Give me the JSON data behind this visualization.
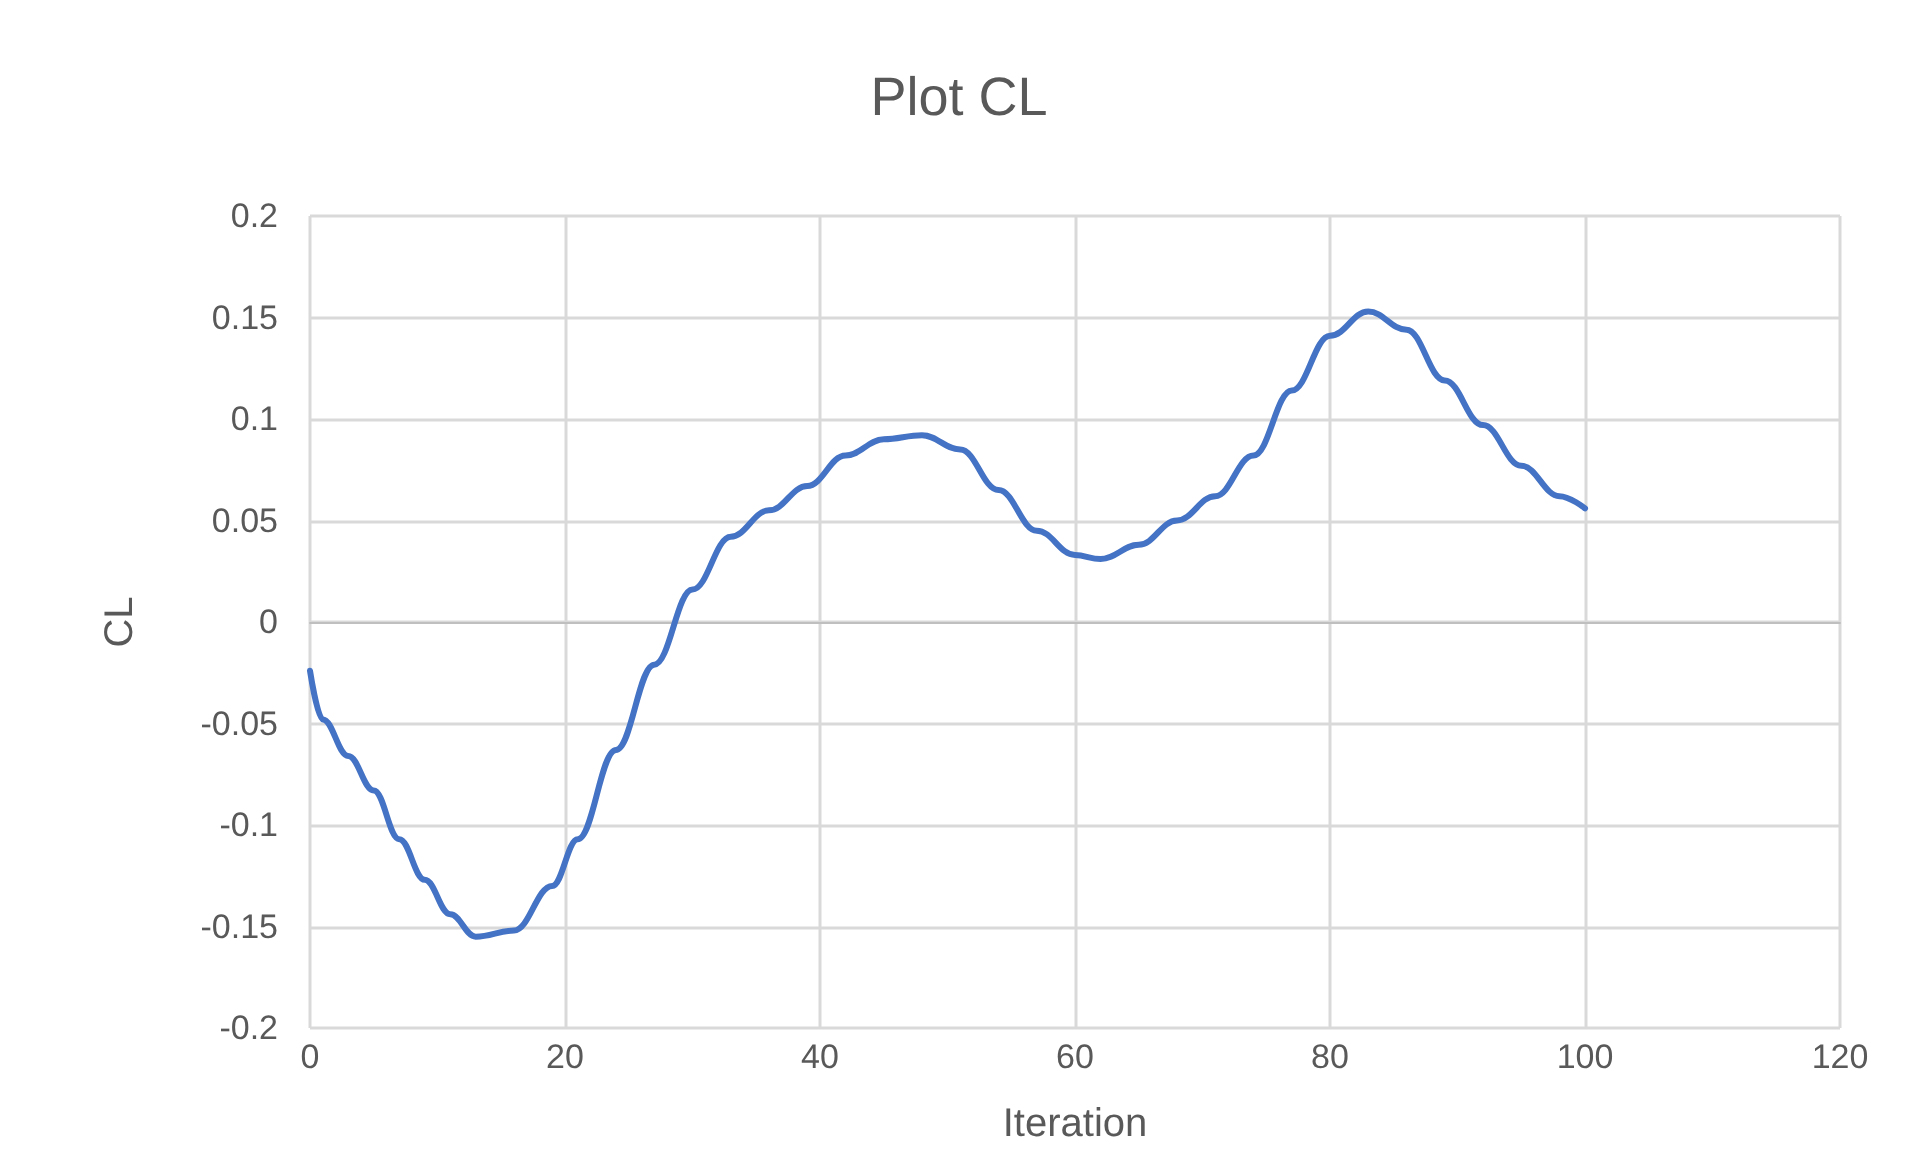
{
  "chart_data": {
    "type": "line",
    "title": "Plot CL",
    "xlabel": "Iteration",
    "ylabel": "CL",
    "x": [
      0,
      1,
      3,
      5,
      7,
      9,
      11,
      13,
      16,
      19,
      21,
      24,
      27,
      30,
      33,
      36,
      39,
      42,
      45,
      48,
      51,
      54,
      57,
      60,
      62,
      65,
      68,
      71,
      74,
      77,
      80,
      83,
      86,
      89,
      92,
      95,
      98,
      100
    ],
    "series": [
      {
        "color": "#4472c4",
        "values": [
          -0.024,
          -0.048,
          -0.066,
          -0.083,
          -0.107,
          -0.127,
          -0.144,
          -0.155,
          -0.152,
          -0.13,
          -0.107,
          -0.063,
          -0.021,
          0.016,
          0.042,
          0.055,
          0.067,
          0.082,
          0.09,
          0.092,
          0.085,
          0.065,
          0.045,
          0.033,
          0.031,
          0.038,
          0.05,
          0.062,
          0.082,
          0.114,
          0.141,
          0.153,
          0.144,
          0.119,
          0.097,
          0.077,
          0.062,
          0.056
        ]
      }
    ],
    "xlim": [
      0,
      120
    ],
    "xticks": [
      0,
      20,
      40,
      60,
      80,
      100,
      120
    ],
    "ylim": [
      -0.2,
      0.2
    ],
    "yticks": [
      -0.2,
      -0.15,
      -0.1,
      -0.05,
      0,
      0.05,
      0.1,
      0.15,
      0.2
    ],
    "grid": true,
    "marker": "none",
    "line_style": "solid"
  }
}
